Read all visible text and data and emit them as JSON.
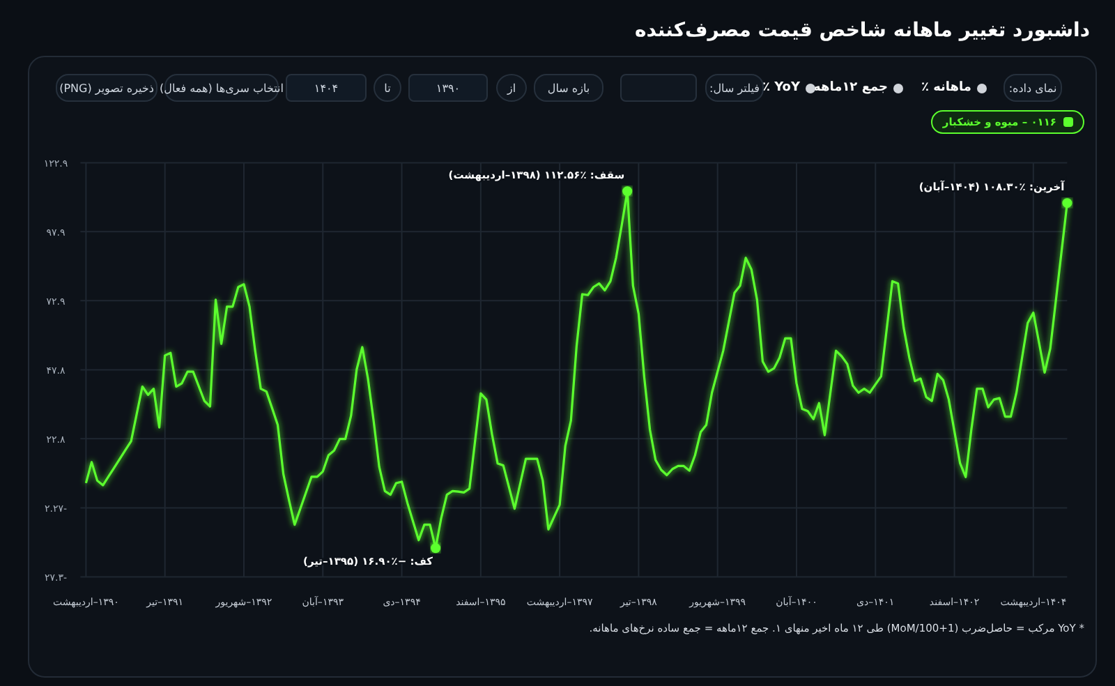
{
  "chart_data": {
    "type": "line",
    "title": "داشبورد تغییر ماهانه شاخص قیمت مصرف‌کننده",
    "categories": [
      "۱۳۹۰–اردیبهشت",
      null,
      null,
      null,
      null,
      null,
      null,
      null,
      null,
      null,
      null,
      null,
      null,
      null,
      "۱۳۹۱–تیر",
      null,
      null,
      null,
      null,
      null,
      null,
      null,
      null,
      null,
      null,
      null,
      null,
      null,
      "۱۳۹۲–شهریور",
      null,
      null,
      null,
      null,
      null,
      null,
      null,
      null,
      null,
      null,
      null,
      null,
      null,
      "۱۳۹۳–آبان",
      null,
      null,
      null,
      null,
      null,
      null,
      null,
      null,
      null,
      null,
      null,
      null,
      null,
      "۱۳۹۴–دی",
      null,
      null,
      null,
      null,
      null,
      null,
      null,
      null,
      null,
      null,
      null,
      null,
      null,
      "۱۳۹۵–اسفند",
      null,
      null,
      null,
      null,
      null,
      null,
      null,
      null,
      null,
      null,
      null,
      null,
      null,
      "۱۳۹۷–اردیبهشت",
      null,
      null,
      null,
      null,
      null,
      null,
      null,
      null,
      null,
      null,
      null,
      null,
      null,
      "۱۳۹۸–تیر",
      null,
      null,
      null,
      null,
      null,
      null,
      null,
      null,
      null,
      null,
      null,
      null,
      null,
      "۱۳۹۹–شهریور",
      null,
      null,
      null,
      null,
      null,
      null,
      null,
      null,
      null,
      null,
      null,
      null,
      null,
      "۱۴۰۰–آبان",
      null,
      null,
      null,
      null,
      null,
      null,
      null,
      null,
      null,
      null,
      null,
      null,
      null,
      "۱۴۰۱–دی",
      null,
      null,
      null,
      null,
      null,
      null,
      null,
      null,
      null,
      null,
      null,
      null,
      null,
      "۱۴۰۲–اسفند",
      null,
      null,
      null,
      null,
      null,
      null,
      null,
      null,
      null,
      null,
      null,
      null,
      null,
      "۱۴۰۴–اردیبهشت",
      null,
      null,
      null,
      null,
      null,
      null
    ],
    "series": [
      {
        "name": "۰۱۱۶ – میوه و خشکبار",
        "color": "#5cff2e",
        "values": [
          6.7,
          14.3,
          7.6,
          5.9,
          9.1,
          12.3,
          15.5,
          18.7,
          21.9,
          31.8,
          41.7,
          38.7,
          40.9,
          26.9,
          53.0,
          53.9,
          41.7,
          42.9,
          47.1,
          47.1,
          41.8,
          36.5,
          34.5,
          73.2,
          57.2,
          70.7,
          70.7,
          77.8,
          78.8,
          70.7,
          54.7,
          40.9,
          39.9,
          33.9,
          27.8,
          10.0,
          0.5,
          -8.4,
          -2.6,
          3.2,
          9.0,
          9.0,
          10.9,
          16.8,
          18.5,
          22.7,
          22.7,
          31.1,
          47.9,
          56.0,
          44.6,
          29.4,
          12.6,
          3.8,
          2.5,
          6.7,
          7.2,
          -0.5,
          -7.3,
          -14.0,
          -8.4,
          -8.4,
          -16.9,
          -5.9,
          2.5,
          3.8,
          3.6,
          3.3,
          4.7,
          22.0,
          39.2,
          37.0,
          24.4,
          13.8,
          13.1,
          5.3,
          -2.6,
          6.5,
          15.5,
          15.5,
          15.5,
          7.6,
          -10.1,
          -5.6,
          -1.2,
          20.2,
          29.4,
          56.4,
          75.2,
          74.9,
          77.8,
          79.1,
          76.6,
          79.9,
          88.4,
          100.2,
          112.56,
          78.3,
          68.1,
          45.0,
          26.1,
          15.1,
          11.5,
          9.6,
          11.8,
          12.9,
          12.9,
          11.2,
          16.8,
          25.2,
          27.8,
          39.5,
          47.1,
          54.7,
          65.2,
          75.7,
          78.3,
          88.4,
          84.2,
          73.2,
          50.8,
          47.1,
          48.3,
          52.2,
          59.2,
          59.2,
          42.9,
          33.6,
          32.8,
          29.9,
          35.7,
          24.1,
          39.4,
          54.7,
          52.7,
          49.9,
          42.0,
          39.5,
          40.9,
          39.5,
          42.5,
          45.4,
          62.7,
          79.9,
          79.1,
          63.1,
          52.2,
          43.7,
          44.6,
          37.9,
          36.5,
          46.3,
          44.1,
          37.0,
          25.5,
          13.9,
          8.9,
          26.1,
          40.9,
          40.9,
          34.2,
          37.0,
          37.5,
          30.8,
          30.8,
          39.5,
          52.2,
          64.8,
          68.5,
          57.7,
          46.8,
          55.5,
          73.1,
          90.7,
          108.3
        ]
      }
    ],
    "ylim": [
      -27.3,
      122.9
    ],
    "yticks": [
      {
        "value": -27.3,
        "label": "-۲۷.۳"
      },
      {
        "value": -2.27,
        "label": "-۲.۲۷"
      },
      {
        "value": 22.8,
        "label": "۲۲.۸"
      },
      {
        "value": 47.8,
        "label": "۴۷.۸"
      },
      {
        "value": 72.9,
        "label": "۷۲.۹"
      },
      {
        "value": 97.9,
        "label": "۹۷.۹"
      },
      {
        "value": 122.9,
        "label": "۱۲۲.۹"
      }
    ],
    "grid": true,
    "legend": "top right",
    "line_style": "solid",
    "annotations": [
      "سقف: ٪۱۱۲.۵۶ (۱۳۹۸–اردیبهشت)",
      "کف: −٪۱۶.۹۰ (۱۳۹۵–تیر)",
      "آخرین: ٪۱۰۸.۳۰ (۱۴۰۴–آبان)",
      "نمای داده:",
      "ماهانه ٪",
      "جمع ۱۲ماهه",
      "YoY ٪",
      "فیلتر سال:",
      "بازه سال",
      "از",
      "۱۳۹۰",
      "تا",
      "۱۴۰۴",
      "انتخاب سری‌ها (همه فعال)",
      "ذخیره تصویر (PNG)",
      "* YoY مرکب = حاصل‌ضرب (1+MoM/100) طی ۱۲ ماه اخیر منهای ۱. جمع ۱۲ماهه = جمع ساده نرخ‌های ماهانه."
    ]
  }
}
